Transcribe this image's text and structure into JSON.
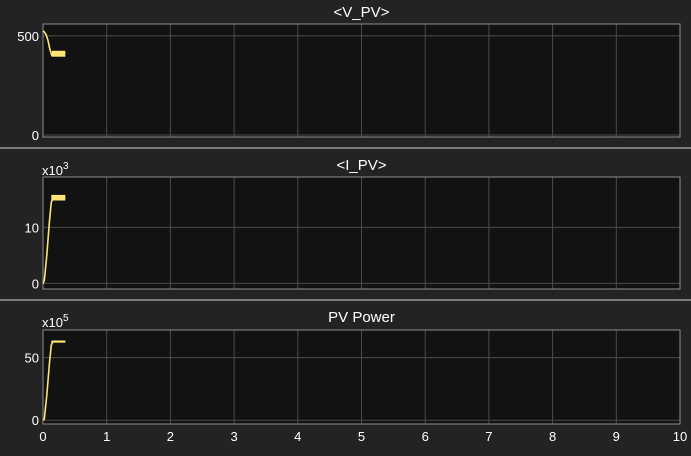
{
  "chart_data": [
    {
      "type": "line",
      "title": "<V_PV>",
      "exponent_label": "",
      "xlim": [
        0,
        10
      ],
      "ylim": [
        -10,
        560
      ],
      "yticks": [
        {
          "value": 0,
          "label": "0"
        },
        {
          "value": 500,
          "label": "500"
        }
      ],
      "xticks": [],
      "grid": true,
      "series": [
        {
          "color": "#ffe477",
          "x": [
            0,
            0.02,
            0.05,
            0.08,
            0.11,
            0.14,
            0.18,
            0.22,
            0.28,
            0.35
          ],
          "y": [
            525,
            520,
            505,
            475,
            430,
            400,
            410,
            412,
            412,
            412
          ],
          "ripple_from": 0.14,
          "ripple": [
            395,
            425
          ]
        }
      ]
    },
    {
      "type": "line",
      "title": "<I_PV>",
      "exponent_label": "x10",
      "exponent_sup": "3",
      "xlim": [
        0,
        10
      ],
      "ylim": [
        -1,
        19
      ],
      "yticks": [
        {
          "value": 0,
          "label": "0"
        },
        {
          "value": 10,
          "label": "10"
        }
      ],
      "xticks": [],
      "grid": true,
      "series": [
        {
          "color": "#ffe477",
          "x": [
            0,
            0.02,
            0.06,
            0.1,
            0.13,
            0.16,
            0.2,
            0.28,
            0.35
          ],
          "y": [
            0,
            0.5,
            5,
            11,
            14.5,
            15.3,
            15.3,
            15.3,
            15.3
          ],
          "ripple_from": 0.13,
          "ripple": [
            14.8,
            15.8
          ]
        }
      ]
    },
    {
      "type": "line",
      "title": "PV Power",
      "exponent_label": "x10",
      "exponent_sup": "5",
      "xlim": [
        0,
        10
      ],
      "ylim": [
        -3,
        72
      ],
      "yticks": [
        {
          "value": 0,
          "label": "0"
        },
        {
          "value": 50,
          "label": "50"
        }
      ],
      "xticks": [
        {
          "value": 0,
          "label": "0"
        },
        {
          "value": 1,
          "label": "1"
        },
        {
          "value": 2,
          "label": "2"
        },
        {
          "value": 3,
          "label": "3"
        },
        {
          "value": 4,
          "label": "4"
        },
        {
          "value": 5,
          "label": "5"
        },
        {
          "value": 6,
          "label": "6"
        },
        {
          "value": 7,
          "label": "7"
        },
        {
          "value": 8,
          "label": "8"
        },
        {
          "value": 9,
          "label": "9"
        },
        {
          "value": 10,
          "label": "10"
        }
      ],
      "grid": true,
      "series": [
        {
          "color": "#ffe477",
          "x": [
            0,
            0.02,
            0.06,
            0.1,
            0.13,
            0.16,
            0.2,
            0.28,
            0.35
          ],
          "y": [
            0,
            1,
            20,
            45,
            60,
            63,
            63,
            63,
            63
          ],
          "ripple_from": 0.13,
          "ripple": [
            62.5,
            63.5
          ]
        }
      ]
    }
  ]
}
